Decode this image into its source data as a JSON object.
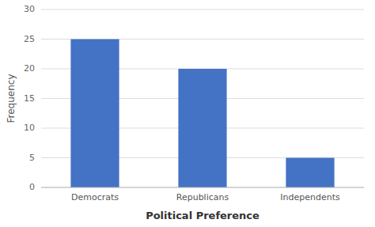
{
  "chart_data": {
    "type": "bar",
    "categories": [
      "Democrats",
      "Republicans",
      "Independents"
    ],
    "values": [
      25,
      20,
      5
    ],
    "color": "#4472C4",
    "xlabel": "Political Preference",
    "ylabel": "Frequency",
    "ylim": [
      0,
      30
    ],
    "yticks": [
      0,
      5,
      10,
      15,
      20,
      25,
      30
    ],
    "grid": true
  }
}
